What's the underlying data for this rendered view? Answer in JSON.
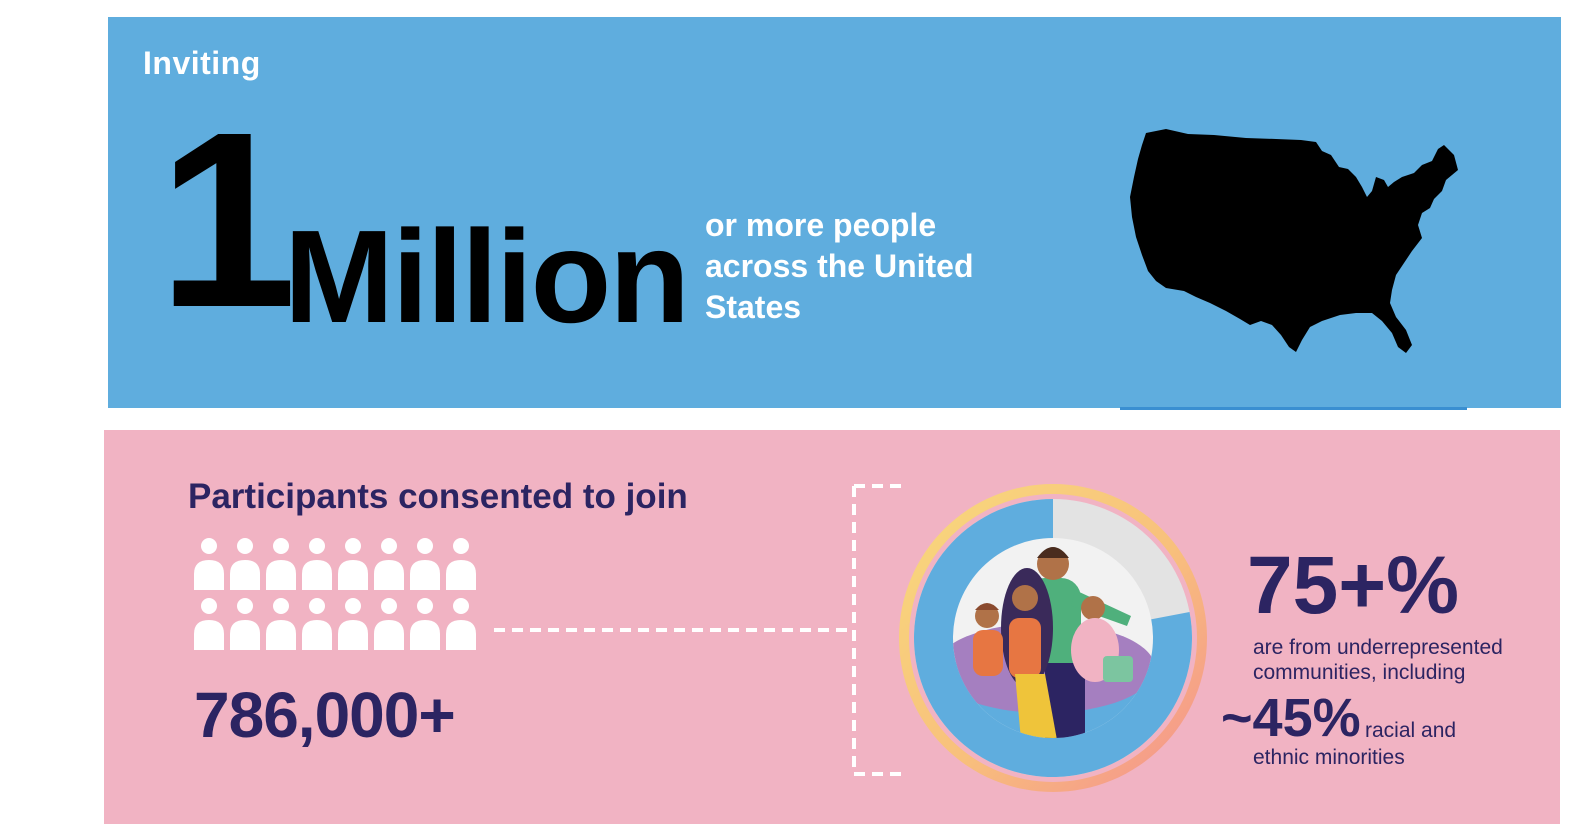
{
  "top": {
    "inviting": "Inviting",
    "number": "1",
    "unit": "Million",
    "description": "or more people across the United States",
    "map_icon": "usa-map-icon"
  },
  "bottom": {
    "title": "Participants consented to join",
    "count": "786,000+",
    "people_icon": "person-icon",
    "people_icon_count": 16,
    "percent_underrepresented": "75+%",
    "underrepresented_desc": "are from underrepresented communities, including",
    "percent_minorities": "~45%",
    "minorities_desc_1": "racial and",
    "minorities_desc_2": "ethnic minorities",
    "donut_icon": "family-illustration-icon",
    "donut_share": 0.78
  },
  "colors": {
    "top_bg": "#5fadde",
    "bottom_bg": "#f1b3c3",
    "navy": "#2c2462",
    "donut_blue": "#5fadde",
    "donut_gray": "#e3e3e3"
  }
}
